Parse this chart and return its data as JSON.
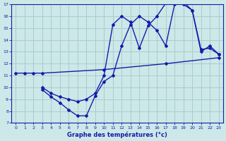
{
  "bg_color": "#cce8e8",
  "grid_color": "#aacccc",
  "line_color": "#1a1aaa",
  "xlabel": "Graphe des températures (°c)",
  "xlim": [
    -0.5,
    23.5
  ],
  "ylim": [
    7,
    17
  ],
  "yticks": [
    7,
    8,
    9,
    10,
    11,
    12,
    13,
    14,
    15,
    16,
    17
  ],
  "xticks": [
    0,
    1,
    2,
    3,
    4,
    5,
    6,
    7,
    8,
    9,
    10,
    11,
    12,
    13,
    14,
    15,
    16,
    17,
    18,
    19,
    20,
    21,
    22,
    23
  ],
  "line1_x": [
    0,
    1,
    2,
    3,
    10,
    17,
    23
  ],
  "line1_y": [
    11.2,
    11.2,
    11.2,
    11.2,
    11.5,
    12.0,
    12.5
  ],
  "line2_x": [
    3,
    4,
    5,
    6,
    7,
    8,
    9,
    10,
    11,
    12,
    13,
    14,
    15,
    16,
    17,
    18,
    19,
    20,
    21,
    22,
    23
  ],
  "line2_y": [
    9.8,
    9.2,
    8.7,
    8.1,
    7.6,
    7.6,
    9.3,
    10.5,
    11.0,
    13.5,
    15.3,
    16.0,
    15.5,
    14.8,
    13.5,
    17.0,
    17.2,
    16.5,
    13.0,
    13.5,
    12.8
  ],
  "line3_x": [
    3,
    4,
    5,
    6,
    7,
    8,
    9,
    10,
    11,
    12,
    13,
    14,
    15,
    16,
    17,
    18,
    19,
    20,
    21,
    22,
    23
  ],
  "line3_y": [
    10.0,
    9.5,
    9.2,
    9.0,
    8.8,
    9.0,
    9.5,
    11.0,
    15.3,
    16.0,
    15.5,
    13.3,
    15.2,
    16.0,
    17.1,
    17.2,
    17.0,
    16.5,
    13.2,
    13.3,
    12.8
  ]
}
